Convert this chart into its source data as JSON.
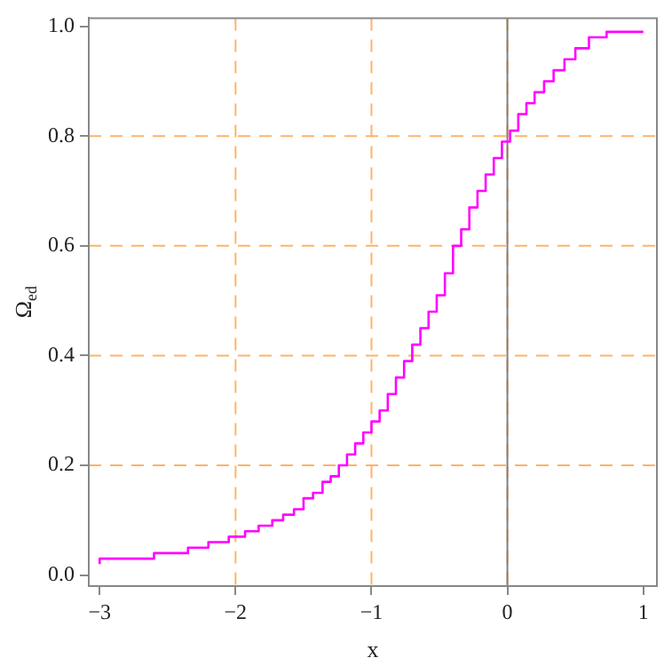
{
  "chart_data": {
    "type": "step",
    "xlabel": "x",
    "ylabel": "Ω$_{ed}$",
    "xlim": [
      -3.08,
      1.1
    ],
    "ylim": [
      -0.02,
      1.015
    ],
    "xticks": [
      {
        "value": -3,
        "label": "−3"
      },
      {
        "value": -2,
        "label": "−2"
      },
      {
        "value": -1,
        "label": "−1"
      },
      0,
      1
    ],
    "yticks": [
      {
        "value": 0,
        "label": "0.0"
      },
      0.2,
      0.4,
      0.6,
      0.8,
      {
        "value": 1,
        "label": "1.0"
      }
    ],
    "grid": true,
    "line_style": "solid",
    "marker": "none",
    "ref_lines": [
      {
        "axis": "x",
        "value": 0,
        "color": "#808080"
      }
    ],
    "series": [
      {
        "color": "#ff00ff",
        "x": [
          -3,
          -2.6,
          -2.35,
          -2.2,
          -2.05,
          -1.93,
          -1.83,
          -1.73,
          -1.65,
          -1.57,
          -1.5,
          -1.43,
          -1.36,
          -1.3,
          -1.24,
          -1.18,
          -1.12,
          -1.06,
          -1.0,
          -0.94,
          -0.88,
          -0.82,
          -0.76,
          -0.7,
          -0.64,
          -0.58,
          -0.52,
          -0.46,
          -0.4,
          -0.34,
          -0.28,
          -0.22,
          -0.16,
          -0.1,
          -0.04,
          0.02,
          0.08,
          0.14,
          0.2,
          0.27,
          0.34,
          0.42,
          0.5,
          0.6,
          0.73,
          0.84,
          1.0
        ],
        "values": [
          0.02,
          0.03,
          0.04,
          0.05,
          0.06,
          0.07,
          0.08,
          0.09,
          0.1,
          0.11,
          0.12,
          0.14,
          0.15,
          0.17,
          0.18,
          0.2,
          0.22,
          0.24,
          0.26,
          0.28,
          0.3,
          0.33,
          0.36,
          0.39,
          0.42,
          0.45,
          0.48,
          0.51,
          0.55,
          0.6,
          0.63,
          0.67,
          0.7,
          0.73,
          0.76,
          0.79,
          0.81,
          0.84,
          0.86,
          0.88,
          0.9,
          0.92,
          0.94,
          0.96,
          0.98,
          0.99,
          0.99
        ]
      }
    ]
  }
}
